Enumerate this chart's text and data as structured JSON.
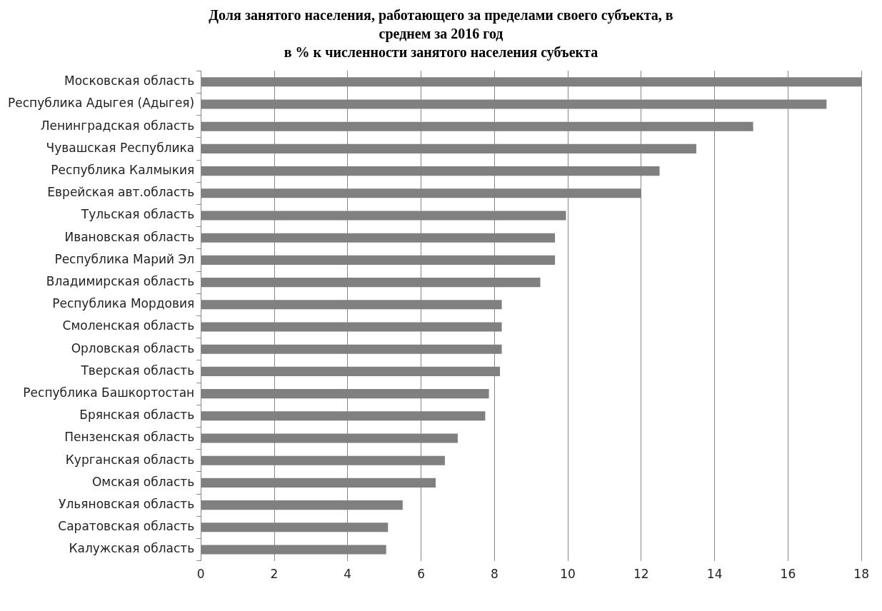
{
  "chart_data": {
    "type": "bar",
    "orientation": "horizontal",
    "title": "Доля занятого населения, работающего за пределами своего субъекта, в среднем за 2016 год",
    "subtitle": "в % к численности занятого населения субъекта",
    "categories": [
      "Московская область",
      "Республика Адыгея (Адыгея)",
      "Ленинградская область",
      "Чувашская Республика",
      "Республика Калмыкия",
      "Еврейская авт.область",
      "Тульская область",
      "Ивановская область",
      "Республика Марий Эл",
      "Владимирская область",
      "Республика Мордовия",
      "Смоленская область",
      "Орловская область",
      "Тверская область",
      "Республика Башкортостан",
      "Брянская область",
      "Пензенская область",
      "Курганская область",
      "Омская область",
      "Ульяновская область",
      "Саратовская область",
      "Калужская область"
    ],
    "values": [
      18.0,
      17.05,
      15.05,
      13.5,
      12.5,
      12.0,
      9.95,
      9.65,
      9.65,
      9.25,
      8.2,
      8.2,
      8.2,
      8.15,
      7.85,
      7.75,
      7.0,
      6.65,
      6.4,
      5.5,
      5.1,
      5.05
    ],
    "color": "#808080",
    "xlim": [
      0,
      18
    ],
    "xticks": [
      0,
      2,
      4,
      6,
      8,
      10,
      12,
      14,
      16,
      18
    ],
    "grid": "x",
    "legend": false
  }
}
